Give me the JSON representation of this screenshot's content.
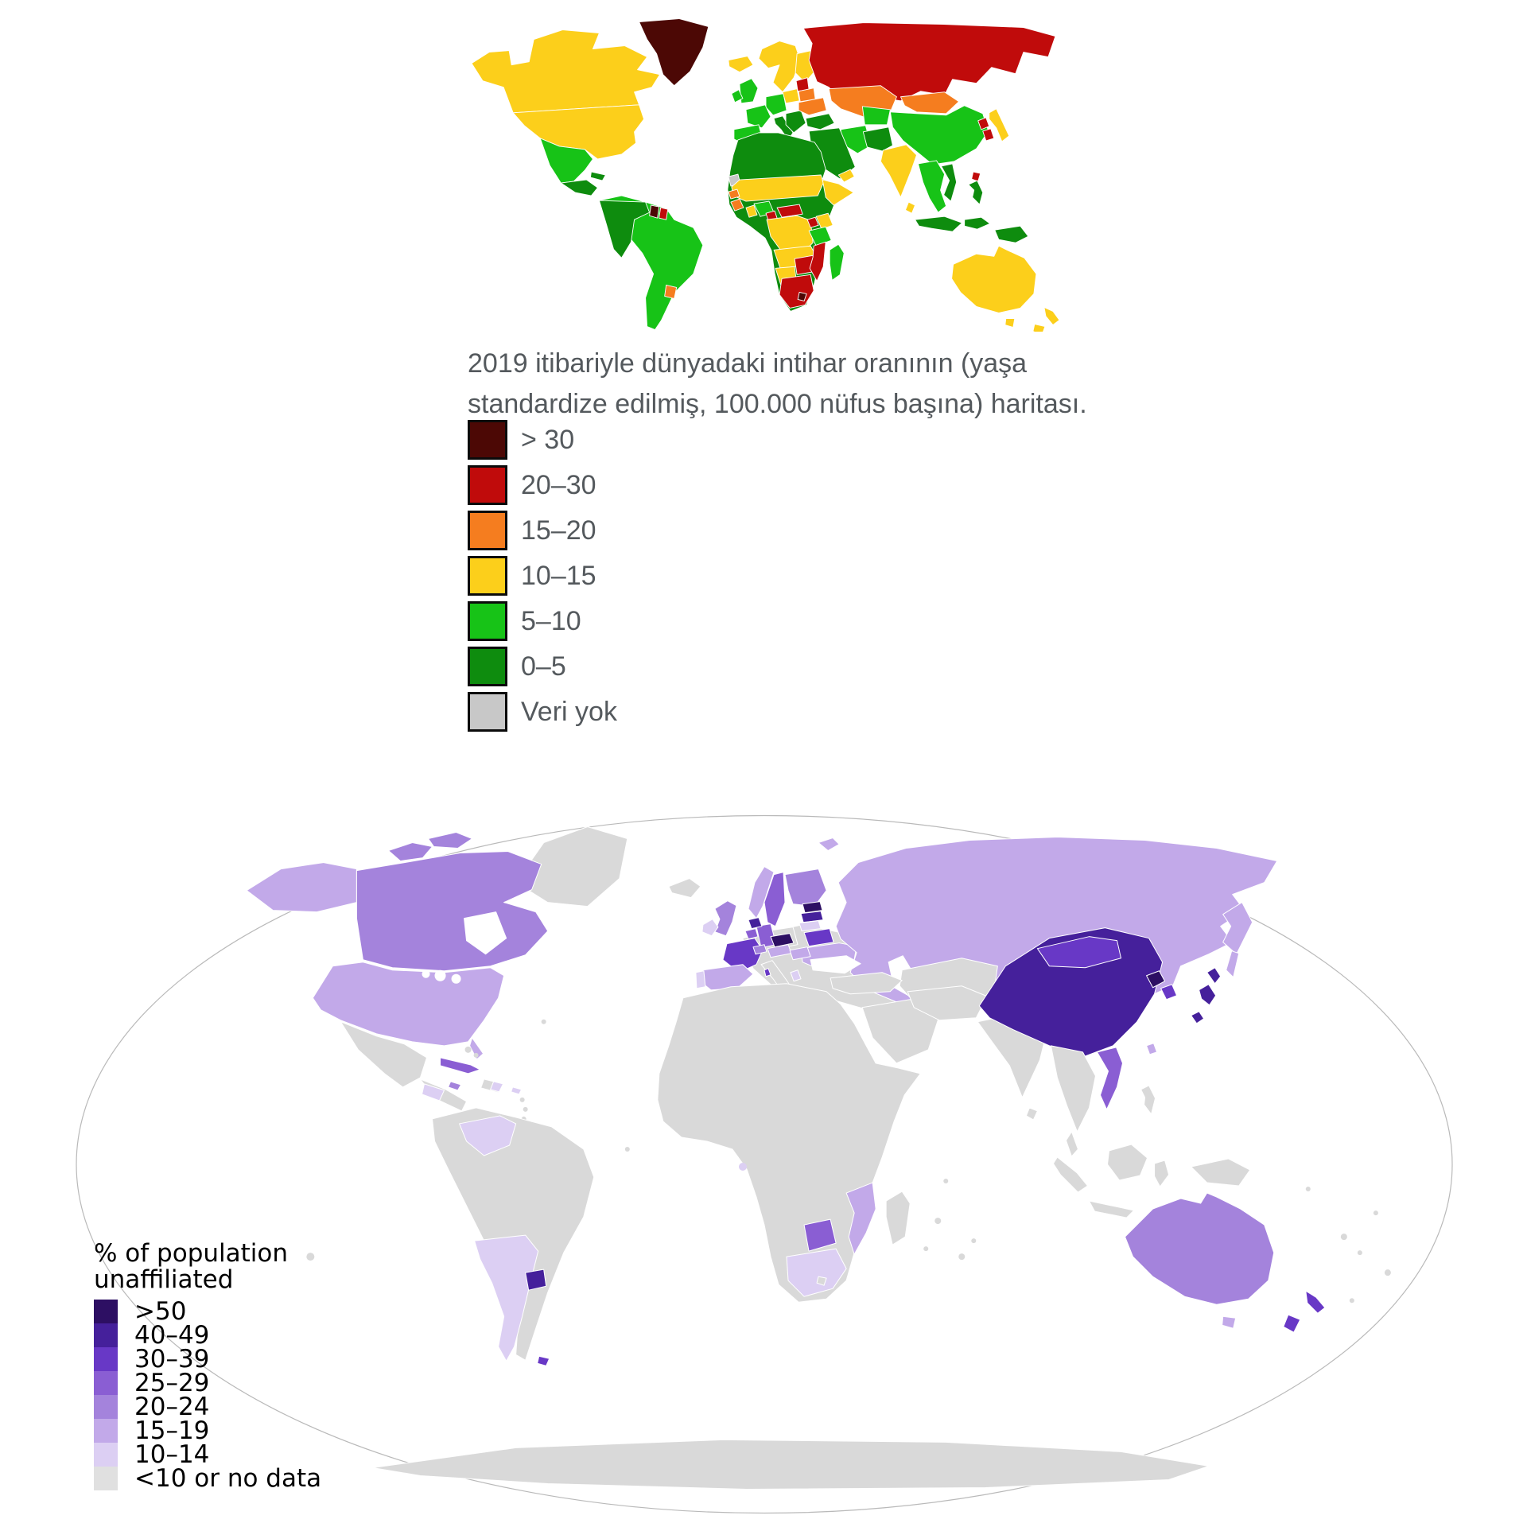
{
  "map1": {
    "caption_line1": "2019 itibariyle dünyadaki intihar oranının (yaşa",
    "caption_line2": "standardize edilmiş, 100.000 nüfus başına) haritası.",
    "legend": [
      {
        "label": "> 30",
        "color": "#4c0805"
      },
      {
        "label": "20–30",
        "color": "#c00b0b"
      },
      {
        "label": "15–20",
        "color": "#f57d1f"
      },
      {
        "label": "10–15",
        "color": "#fccf1b"
      },
      {
        "label": "5–10",
        "color": "#17c317"
      },
      {
        "label": "0–5",
        "color": "#0e8c0e"
      },
      {
        "label": "Veri yok",
        "color": "#c8c8c8"
      }
    ],
    "regions": {
      "canada-alaska": "10–15",
      "usa": "10–15",
      "mexico": "5–10",
      "central-america": "0–5",
      "cuba": "0–5",
      "greenland": "> 30",
      "iceland": "10–15",
      "south-america": "5–10",
      "andes-west": "0–5",
      "guyana": "> 30",
      "suriname": "20–30",
      "uruguay": "15–20",
      "scandinavia": "10–15",
      "finland": "10–15",
      "uk": "5–10",
      "ireland": "5–10",
      "france": "5–10",
      "iberia": "5–10",
      "central-europe": "5–10",
      "poland": "10–15",
      "italy": "0–5",
      "balkans": "0–5",
      "baltics": "20–30",
      "belarus": "15–20",
      "ukraine": "15–20",
      "russia": "20–30",
      "kazakhstan": "15–20",
      "mongolia": "15–20",
      "china": "5–10",
      "japan": "10–15",
      "north-korea": "20–30",
      "south-korea": "20–30",
      "taiwan": "20–30",
      "india": "10–15",
      "sri-lanka": "10–15",
      "pakistan-afghanistan": "0–5",
      "iran": "5–10",
      "central-asia": "5–10",
      "turkey": "0–5",
      "arabia": "0–5",
      "yemen-oman": "10–15",
      "se-asia-mainland": "5–10",
      "vietnam": "0–5",
      "indonesia-west": "0–5",
      "indonesia-east": "0–5",
      "philippines": "0–5",
      "papua-new-guinea": "0–5",
      "africa-base": "0–5",
      "western-sahara": "Veri yok",
      "sahel": "10–15",
      "senegal": "15–20",
      "guinea": "15–20",
      "ghana": "10–15",
      "nigeria": "5–10",
      "cameroon": "20–30",
      "central-african-rep": "20–30",
      "dr-congo": "10–15",
      "uganda": "20–30",
      "kenya": "10–15",
      "somalia": "10–15",
      "tanzania": "5–10",
      "angola-zambia": "10–15",
      "namibia": "10–15",
      "zimbabwe-botswana": "20–30",
      "mozambique": "20–30",
      "south-africa": "20–30",
      "lesotho": "> 30",
      "madagascar": "5–10",
      "australia": "10–15",
      "tasmania": "10–15",
      "new-zealand-north": "10–15",
      "new-zealand-south": "10–15"
    }
  },
  "map2": {
    "legend_title_line1": "% of population",
    "legend_title_line2": "unaffiliated",
    "land_color": "#d9d9d9",
    "legend": [
      {
        "label": ">50",
        "color": "#2d0f63"
      },
      {
        "label": "40–49",
        "color": "#45209b"
      },
      {
        "label": "30–39",
        "color": "#6838c6"
      },
      {
        "label": "25–29",
        "color": "#8a5ed3"
      },
      {
        "label": "20–24",
        "color": "#a483dc"
      },
      {
        "label": "15–19",
        "color": "#c2a9e9"
      },
      {
        "label": "10–14",
        "color": "#dccff3"
      },
      {
        "label": "<10 or no data",
        "color": "#e0e0e0"
      }
    ],
    "regions": {
      "greenland": "land",
      "canada": "20–24",
      "canada-arctic-1": "20–24",
      "canada-arctic-2": "20–24",
      "alaska": "15–19",
      "usa": "15–19",
      "florida": "15–19",
      "mexico": "land",
      "central-america": "land",
      "honduras": "10–14",
      "cuba": "25–29",
      "jamaica": "20–24",
      "hispaniola": "land",
      "dominican-republic": "10–14",
      "puerto-rico": "10–14",
      "south-america": "land",
      "venezuela": "10–14",
      "argentina": "10–14",
      "uruguay": "40–49",
      "falkland-islands": "30–39",
      "iceland": "land",
      "norway": "15–19",
      "svalbard": "15–19",
      "sweden": "25–29",
      "finland": "20–24",
      "estonia": ">50",
      "latvia": "40–49",
      "lithuania": "10–14",
      "belarus": "30–39",
      "ukraine": "15–19",
      "poland": "land",
      "germany": "25–29",
      "netherlands": "40–49",
      "belgium": "25–29",
      "uk": "20–24",
      "ireland": "10–14",
      "france": "30–39",
      "corsica": "30–39",
      "czechia": ">50",
      "austria": "15–19",
      "switzerland": "20–24",
      "hungary": "15–19",
      "spain": "15–19",
      "portugal": "10–14",
      "albania": "10–14",
      "europe-base": "land",
      "russia": "15–19",
      "kamchatka": "15–19",
      "sakhalin": "15–19",
      "kazakhstan": "land",
      "anatolia-caucasus": "land",
      "arabia": "land",
      "iran-region": "land",
      "india": "land",
      "sri-lanka": "land",
      "china": "40–49",
      "mongolia": "30–39",
      "north-korea": ">50",
      "south-korea": "30–39",
      "japan-north": "40–49",
      "japan-main": "40–49",
      "japan-south": "40–49",
      "taiwan": "15–19",
      "vietnam": "25–29",
      "se-asia": "land",
      "malay-peninsula": "land",
      "sumatra": "land",
      "java": "land",
      "borneo": "land",
      "sulawesi": "land",
      "new-guinea": "land",
      "philippines": "land",
      "africa": "land",
      "botswana": "25–29",
      "mozambique": "15–19",
      "south-africa": "10–14",
      "lesotho": "land",
      "sao-tome": "10–14",
      "madagascar": "land",
      "australia": "20–24",
      "tasmania": "15–19",
      "new-zealand-north": "30–39",
      "new-zealand-south": "30–39",
      "antarctica": "land",
      "island": "land"
    }
  }
}
